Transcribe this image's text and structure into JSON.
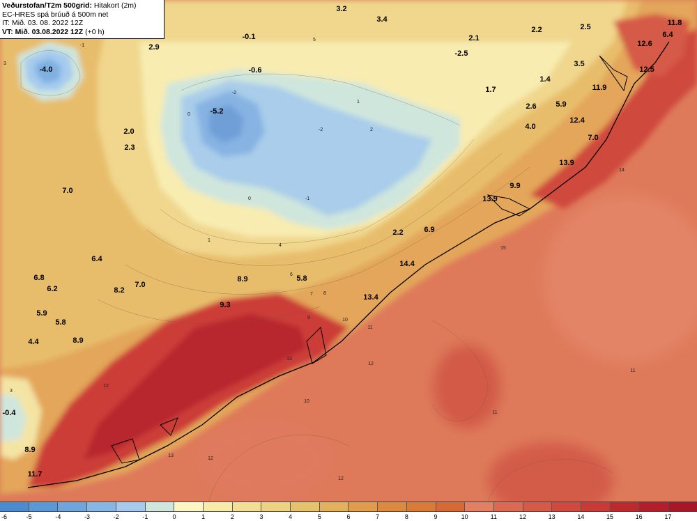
{
  "header": {
    "title": "Veðurstofan/T2m 500grid:",
    "title_suffix": "Hitakort (2m)",
    "model": "EC-HRES spá brúuð á 500m net",
    "it": "IT: Mið. 03. 08. 2022 12Z",
    "vt_label": "VT: Mið. 03.08.2022 12Z",
    "vt_suffix": "(+0 h)"
  },
  "colorbar": {
    "ticks": [
      "-6",
      "-5",
      "-4",
      "-3",
      "-2",
      "-1",
      "0",
      "1",
      "2",
      "3",
      "4",
      "5",
      "6",
      "7",
      "8",
      "9",
      "10",
      "11",
      "12",
      "13",
      "14",
      "15",
      "16",
      "17"
    ],
    "colors": [
      "#4a8ccf",
      "#5b98d6",
      "#6fa5dc",
      "#86b6e4",
      "#a6cbee",
      "#cfe6dd",
      "#fbf6c4",
      "#f8ebaa",
      "#f2df95",
      "#ecd282",
      "#e7c26d",
      "#e3b05c",
      "#e09c4b",
      "#dd8a3e",
      "#da7a37",
      "#d76a34",
      "#e38064",
      "#dc6a52",
      "#d55a47",
      "#cf4a3d",
      "#c83a35",
      "#bd2a2d",
      "#b21f2a",
      "#a71726"
    ]
  },
  "temp_labels": [
    {
      "v": "3.2"
    },
    {
      "v": "3.4"
    },
    {
      "v": "-0.1"
    },
    {
      "v": "2.1"
    },
    {
      "v": "2.2"
    },
    {
      "v": "2.5"
    },
    {
      "v": "11.8"
    },
    {
      "v": "6.4"
    },
    {
      "v": "-4.0"
    },
    {
      "v": "2.9"
    },
    {
      "v": "-2.5"
    },
    {
      "v": "12.6"
    },
    {
      "v": "3.5"
    },
    {
      "v": "12.5"
    },
    {
      "v": "-0.6"
    },
    {
      "v": "1.4"
    },
    {
      "v": "1.7"
    },
    {
      "v": "11.9"
    },
    {
      "v": "-5.2"
    },
    {
      "v": "2.6"
    },
    {
      "v": "5.9"
    },
    {
      "v": "12.4"
    },
    {
      "v": "4.0"
    },
    {
      "v": "2.0"
    },
    {
      "v": "7.0"
    },
    {
      "v": "2.3"
    },
    {
      "v": "13.9"
    },
    {
      "v": "7.0"
    },
    {
      "v": "9.9"
    },
    {
      "v": "13.9"
    },
    {
      "v": "2.2"
    },
    {
      "v": "6.9"
    },
    {
      "v": "6.4"
    },
    {
      "v": "14.4"
    },
    {
      "v": "6.8"
    },
    {
      "v": "8.9"
    },
    {
      "v": "5.8"
    },
    {
      "v": "6.2"
    },
    {
      "v": "8.2"
    },
    {
      "v": "7.0"
    },
    {
      "v": "9.3"
    },
    {
      "v": "13.4"
    },
    {
      "v": "5.9"
    },
    {
      "v": "5.8"
    },
    {
      "v": "4.4"
    },
    {
      "v": "8.9"
    },
    {
      "v": "-0.4"
    },
    {
      "v": "8.9"
    },
    {
      "v": "11.7"
    }
  ],
  "contour_labels": [
    {
      "v": "5"
    },
    {
      "v": "3"
    },
    {
      "v": "-1"
    },
    {
      "v": "0"
    },
    {
      "v": "-2"
    },
    {
      "v": "1"
    },
    {
      "v": "2"
    },
    {
      "v": "4"
    },
    {
      "v": "6"
    },
    {
      "v": "7"
    },
    {
      "v": "8"
    },
    {
      "v": "9"
    },
    {
      "v": "10"
    },
    {
      "v": "11"
    },
    {
      "v": "12"
    },
    {
      "v": "13"
    },
    {
      "v": "14"
    },
    {
      "v": "15"
    },
    {
      "v": "11"
    },
    {
      "v": "10"
    },
    {
      "v": "12"
    },
    {
      "v": "11"
    },
    {
      "v": "12"
    },
    {
      "v": "13"
    },
    {
      "v": "12"
    },
    {
      "v": "-1"
    },
    {
      "v": "-2"
    },
    {
      "v": "0"
    },
    {
      "v": "1"
    },
    {
      "v": "3"
    }
  ]
}
